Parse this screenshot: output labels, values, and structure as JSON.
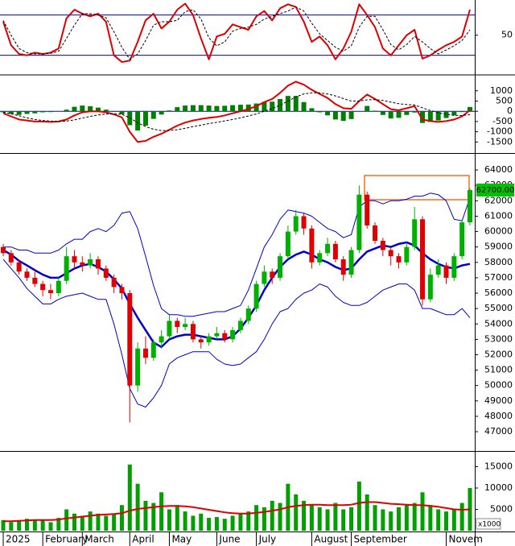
{
  "chart_data": [
    {
      "type": "line",
      "ylim": [
        -8,
        100
      ],
      "yticks": [
        50
      ],
      "hlines": [
        80,
        20
      ],
      "hline_color": "#0000cc",
      "series": [
        {
          "color": "#dd0000",
          "width": 2,
          "values": [
            70,
            35,
            22,
            20,
            24,
            22,
            24,
            30,
            75,
            88,
            82,
            78,
            82,
            70,
            20,
            10,
            12,
            40,
            72,
            82,
            60,
            70,
            88,
            97,
            80,
            45,
            14,
            48,
            52,
            66,
            62,
            58,
            78,
            86,
            72,
            90,
            96,
            92,
            70,
            40,
            48,
            35,
            14,
            30,
            55,
            96,
            80,
            62,
            30,
            20,
            35,
            50,
            58,
            15,
            20,
            28,
            35,
            40,
            48,
            88
          ]
        },
        {
          "color": "#000000",
          "width": 1,
          "dash": true,
          "values": [
            72,
            50,
            30,
            24,
            22,
            22,
            23,
            26,
            45,
            65,
            82,
            82,
            80,
            76,
            55,
            32,
            14,
            22,
            42,
            65,
            70,
            70,
            72,
            85,
            88,
            74,
            46,
            34,
            40,
            56,
            60,
            62,
            66,
            74,
            78,
            82,
            86,
            92,
            86,
            68,
            52,
            42,
            32,
            26,
            34,
            62,
            78,
            78,
            58,
            36,
            28,
            36,
            48,
            40,
            30,
            22,
            28,
            34,
            42,
            58
          ]
        }
      ]
    },
    {
      "type": "macd",
      "ylim": [
        -2000,
        1700
      ],
      "yticks": [
        1000,
        500,
        0,
        -500,
        -1000,
        -1500
      ],
      "histogram": {
        "color": "#008000",
        "values": [
          -50,
          -130,
          -180,
          -130,
          -100,
          -50,
          -40,
          0,
          80,
          220,
          280,
          250,
          180,
          80,
          -30,
          -150,
          -680,
          -940,
          -700,
          -370,
          -160,
          40,
          200,
          280,
          300,
          300,
          280,
          260,
          270,
          300,
          320,
          330,
          380,
          450,
          470,
          600,
          750,
          750,
          450,
          150,
          -50,
          -200,
          -400,
          -470,
          -380,
          0,
          260,
          30,
          -180,
          -350,
          -320,
          -180,
          -60,
          -570,
          -520,
          -450,
          -330,
          -200,
          -40,
          210
        ]
      },
      "series": [
        {
          "color": "#dd0000",
          "width": 2,
          "values": [
            -100,
            -250,
            -400,
            -450,
            -500,
            -500,
            -520,
            -500,
            -400,
            -200,
            -50,
            0,
            0,
            -50,
            -150,
            -300,
            -1000,
            -1500,
            -1450,
            -1250,
            -1100,
            -900,
            -700,
            -550,
            -450,
            -380,
            -320,
            -280,
            -200,
            -100,
            0,
            100,
            250,
            450,
            600,
            900,
            1250,
            1450,
            1300,
            1050,
            850,
            650,
            350,
            150,
            120,
            500,
            820,
            600,
            350,
            100,
            50,
            150,
            250,
            -400,
            -480,
            -520,
            -480,
            -400,
            -250,
            50
          ]
        },
        {
          "color": "#000000",
          "width": 1,
          "dash": true,
          "values": [
            -50,
            -120,
            -220,
            -320,
            -400,
            -450,
            -480,
            -500,
            -480,
            -420,
            -330,
            -250,
            -180,
            -130,
            -120,
            -150,
            -320,
            -560,
            -750,
            -880,
            -940,
            -940,
            -900,
            -830,
            -750,
            -680,
            -600,
            -540,
            -470,
            -400,
            -320,
            -230,
            -130,
            0,
            130,
            300,
            500,
            700,
            850,
            900,
            900,
            850,
            750,
            620,
            500,
            500,
            560,
            570,
            530,
            450,
            370,
            330,
            310,
            170,
            40,
            -70,
            -150,
            -200,
            -210,
            -160
          ]
        }
      ]
    },
    {
      "type": "candlestick",
      "ylim": [
        45800,
        65000
      ],
      "yticks": [
        47000,
        48000,
        49000,
        50000,
        51000,
        52000,
        53000,
        54000,
        55000,
        56000,
        57000,
        58000,
        59000,
        60000,
        61000,
        62000,
        63000,
        64000
      ],
      "up_color": "#00b000",
      "down_color": "#e00000",
      "open": [
        59000,
        58600,
        58000,
        57400,
        57000,
        56600,
        56200,
        56000,
        56800,
        58400,
        58000,
        57800,
        58200,
        57600,
        57000,
        56400,
        56000,
        50000,
        52400,
        51800,
        52800,
        53200,
        54200,
        53800,
        54000,
        53000,
        52800,
        53200,
        53400,
        53000,
        53600,
        54200,
        55000,
        56600,
        57400,
        57000,
        58400,
        60000,
        61000,
        60200,
        58000,
        58600,
        59200,
        58200,
        57200,
        58800,
        62400,
        60400,
        59400,
        58800,
        58400,
        58000,
        59000,
        60800,
        55600,
        57200,
        57800,
        57000,
        58400,
        60600
      ],
      "high": [
        59200,
        58800,
        58200,
        57600,
        57400,
        56800,
        56600,
        57000,
        59000,
        58800,
        58400,
        58600,
        58400,
        57800,
        57200,
        56600,
        56200,
        52800,
        53200,
        53000,
        53600,
        54600,
        54400,
        54400,
        54200,
        53200,
        53400,
        53800,
        53600,
        53800,
        54400,
        55200,
        56800,
        57800,
        57600,
        58600,
        60400,
        61400,
        61200,
        60400,
        58800,
        59600,
        59400,
        58400,
        59000,
        63000,
        62600,
        60600,
        59600,
        59000,
        58600,
        59200,
        61600,
        61000,
        57600,
        58200,
        58000,
        58600,
        60800,
        62800
      ],
      "low": [
        58400,
        57800,
        57200,
        56800,
        56400,
        55800,
        55600,
        55800,
        56600,
        57600,
        57400,
        57600,
        57200,
        56800,
        56000,
        55600,
        47600,
        49600,
        51400,
        51600,
        52400,
        53000,
        53400,
        53600,
        52800,
        52400,
        52600,
        53000,
        52800,
        52800,
        53400,
        54000,
        54800,
        56400,
        56600,
        56800,
        58200,
        59800,
        59800,
        57600,
        57800,
        58400,
        58000,
        56800,
        57000,
        58600,
        60200,
        59200,
        58400,
        57800,
        57600,
        57800,
        58800,
        55200,
        55400,
        57000,
        56600,
        56800,
        58200,
        60400
      ],
      "close": [
        58600,
        58000,
        57400,
        57000,
        56600,
        56200,
        56000,
        56800,
        58400,
        58000,
        57800,
        58200,
        57600,
        57000,
        56400,
        56000,
        50000,
        52400,
        51800,
        52800,
        53200,
        54200,
        53800,
        54000,
        53000,
        52800,
        53200,
        53400,
        53000,
        53600,
        54200,
        55000,
        56600,
        57400,
        57000,
        58400,
        60000,
        61000,
        60200,
        58000,
        58600,
        59200,
        58200,
        57200,
        58800,
        62400,
        60400,
        59400,
        58800,
        58400,
        58000,
        59000,
        60800,
        55600,
        57200,
        57800,
        57000,
        58400,
        60600,
        62700
      ],
      "bands": [
        {
          "color": "#0000cc",
          "width": 1,
          "values": [
            59000,
            59000,
            58800,
            58800,
            58600,
            58600,
            58600,
            58800,
            59200,
            59500,
            59500,
            60000,
            60200,
            60000,
            60400,
            61200,
            61300,
            60200,
            58400,
            56500,
            55000,
            54600,
            54600,
            54500,
            54500,
            54600,
            54700,
            54800,
            54800,
            55000,
            55200,
            56200,
            57600,
            59000,
            59800,
            60800,
            61400,
            61300,
            61200,
            61000,
            60600,
            60200,
            60000,
            59600,
            59800,
            61600,
            62000,
            62000,
            61800,
            62000,
            62000,
            62100,
            62300,
            62300,
            62500,
            62400,
            62000,
            60800,
            60700,
            62200
          ]
        },
        {
          "color": "#0000cc",
          "width": 2.5,
          "values": [
            58800,
            58500,
            58100,
            57800,
            57500,
            57200,
            57000,
            57000,
            57300,
            57600,
            57800,
            57900,
            57700,
            57400,
            56900,
            56300,
            55300,
            54400,
            53600,
            52800,
            52500,
            53000,
            53200,
            53300,
            53300,
            53200,
            53100,
            53000,
            53000,
            53200,
            53700,
            54400,
            55200,
            56200,
            57000,
            57700,
            58200,
            58500,
            58700,
            58500,
            58200,
            58000,
            57700,
            57500,
            57600,
            58200,
            58700,
            58900,
            59100,
            59000,
            59200,
            59300,
            59100,
            58600,
            58200,
            57900,
            57700,
            57600,
            57800,
            57900
          ]
        },
        {
          "color": "#0000cc",
          "width": 1,
          "values": [
            58200,
            57600,
            57000,
            56300,
            55800,
            55300,
            55300,
            55600,
            55800,
            55900,
            56000,
            55800,
            55600,
            55600,
            54000,
            52000,
            49800,
            48800,
            48600,
            49200,
            50000,
            51400,
            51800,
            52000,
            52200,
            52200,
            52200,
            51700,
            51400,
            51300,
            51400,
            51800,
            52200,
            53000,
            54000,
            54800,
            55000,
            55600,
            56000,
            56200,
            56600,
            56400,
            55800,
            55400,
            55200,
            55200,
            55400,
            55800,
            56200,
            56400,
            56600,
            56600,
            56200,
            55000,
            55000,
            54800,
            54600,
            54600,
            55000,
            54400
          ]
        }
      ],
      "last_price": {
        "value": 62700,
        "label": "62700.00"
      }
    },
    {
      "type": "volume",
      "ylim": [
        0,
        18300
      ],
      "yticks": [
        5000,
        10000,
        15000
      ],
      "unit": "x1000",
      "color": "#00a000",
      "categories": [
        "2025",
        null,
        null,
        null,
        null,
        "February",
        null,
        null,
        null,
        null,
        "March",
        null,
        null,
        null,
        null,
        null,
        "April",
        null,
        null,
        null,
        null,
        "May",
        null,
        null,
        null,
        null,
        null,
        "June",
        null,
        null,
        null,
        null,
        "July",
        null,
        null,
        null,
        null,
        null,
        null,
        "August",
        null,
        null,
        null,
        null,
        "September",
        null,
        null,
        null,
        null,
        null,
        null,
        null,
        null,
        null,
        null,
        null,
        "Novem",
        null,
        null,
        null
      ],
      "values": [
        2500,
        2000,
        2200,
        2800,
        2600,
        2400,
        2000,
        3000,
        5000,
        4000,
        3200,
        4500,
        4000,
        3500,
        4000,
        6000,
        15500,
        11000,
        7000,
        6500,
        9000,
        5000,
        6000,
        4500,
        3500,
        4000,
        3000,
        3200,
        2800,
        3500,
        4000,
        4500,
        6000,
        5500,
        7000,
        6500,
        11000,
        8500,
        7000,
        6000,
        5500,
        5000,
        6500,
        5000,
        5500,
        11500,
        8500,
        6000,
        5000,
        4500,
        5500,
        6000,
        6500,
        9000,
        6000,
        5000,
        4500,
        5000,
        6500,
        10000
      ],
      "ma": {
        "color": "#dd0000",
        "width": 2,
        "values": [
          2200,
          2200,
          2300,
          2400,
          2500,
          2500,
          2500,
          2600,
          2900,
          3100,
          3300,
          3500,
          3700,
          3800,
          3900,
          4100,
          4700,
          5100,
          5300,
          5500,
          5700,
          5800,
          5800,
          5700,
          5500,
          5200,
          4900,
          4600,
          4300,
          4100,
          4000,
          4000,
          4200,
          4400,
          4700,
          5000,
          5500,
          5800,
          6000,
          6100,
          6100,
          6000,
          6000,
          6000,
          6100,
          6500,
          6700,
          6700,
          6500,
          6300,
          6200,
          6100,
          6000,
          6000,
          5800,
          5600,
          5300,
          5000,
          4900,
          5000
        ]
      }
    }
  ]
}
